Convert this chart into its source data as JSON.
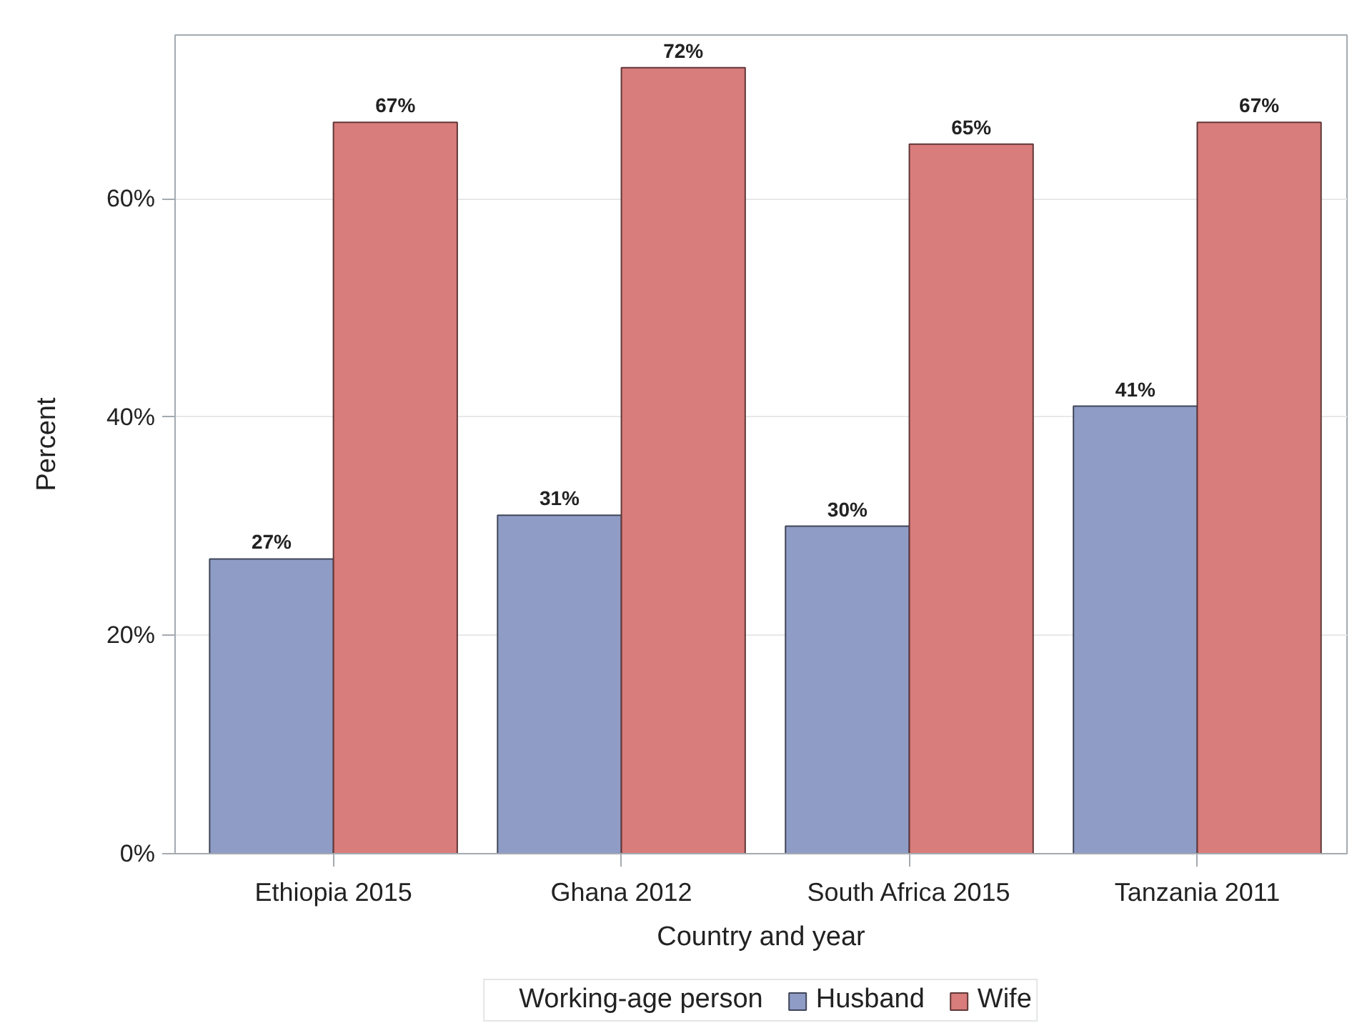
{
  "chart_data": {
    "type": "bar",
    "xlabel": "Country and year",
    "ylabel": "Percent",
    "legend_title": "Working-age person",
    "categories": [
      "Ethiopia 2015",
      "Ghana 2012",
      "South Africa 2015",
      "Tanzania 2011"
    ],
    "series": [
      {
        "name": "Husband",
        "color": "#8f9cc6",
        "values": [
          27,
          31,
          30,
          41
        ],
        "value_labels": [
          "27%",
          "31%",
          "30%",
          "41%"
        ]
      },
      {
        "name": "Wife",
        "color": "#d97c7c",
        "values": [
          67,
          72,
          65,
          67
        ],
        "value_labels": [
          "67%",
          "72%",
          "65%",
          "67%"
        ]
      }
    ],
    "ylim": [
      0,
      75
    ],
    "yticks": [
      {
        "value": 0,
        "label": "0%"
      },
      {
        "value": 20,
        "label": "20%"
      },
      {
        "value": 40,
        "label": "40%"
      },
      {
        "value": 60,
        "label": "60%"
      }
    ],
    "grid": "y",
    "legend": "bottom"
  }
}
